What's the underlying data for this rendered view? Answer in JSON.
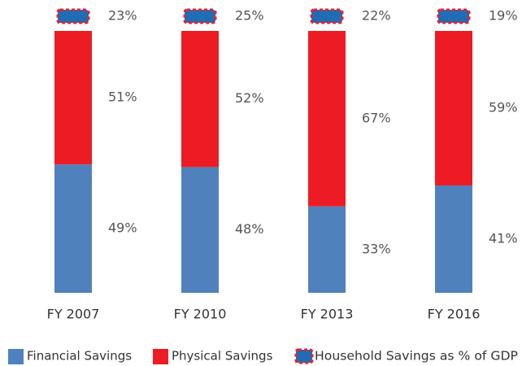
{
  "chart_data": {
    "type": "bar",
    "stacked": true,
    "categories": [
      "FY 2007",
      "FY 2010",
      "FY 2013",
      "FY 2016"
    ],
    "series": [
      {
        "name": "Financial Savings",
        "color": "#4f81bd",
        "values": [
          49,
          48,
          33,
          41
        ],
        "value_labels": [
          "49%",
          "48%",
          "33%",
          "41%"
        ]
      },
      {
        "name": "Physical Savings",
        "color": "#ed1c24",
        "values": [
          51,
          52,
          67,
          59
        ],
        "value_labels": [
          "51%",
          "52%",
          "67%",
          "59%"
        ]
      },
      {
        "name": "Household Savings as % of GDP",
        "color": "#1f6db5",
        "marker": true,
        "values": [
          23,
          25,
          22,
          19
        ],
        "value_labels": [
          "23%",
          "25%",
          "22%",
          "19%"
        ]
      }
    ],
    "legend": "bottom"
  }
}
